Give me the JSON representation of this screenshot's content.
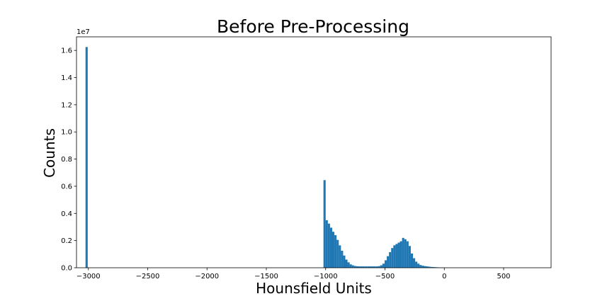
{
  "chart_data": {
    "type": "bar",
    "title": "Before Pre-Processing",
    "xlabel": "Hounsfield Units",
    "ylabel": "Counts",
    "y_offset_label": "1e7",
    "xlim": [
      -3100,
      900
    ],
    "ylim": [
      0,
      17000000
    ],
    "grid": false,
    "bar_color": "#1f77b4",
    "x_ticks": [
      -3000,
      -2500,
      -2000,
      -1500,
      -1000,
      -500,
      0,
      500
    ],
    "x_tick_labels": [
      "−3000",
      "−2500",
      "−2000",
      "−1500",
      "−1000",
      "−500",
      "0",
      "500"
    ],
    "y_ticks": [
      0,
      2000000,
      4000000,
      6000000,
      8000000,
      10000000,
      12000000,
      14000000,
      16000000
    ],
    "y_tick_labels": [
      "0.0",
      "0.2",
      "0.4",
      "0.6",
      "0.8",
      "1.0",
      "1.2",
      "1.4",
      "1.6"
    ],
    "bins": {
      "start": -3024,
      "width": 18.4,
      "counts": [
        16250000,
        0,
        0,
        0,
        0,
        0,
        0,
        0,
        0,
        0,
        0,
        0,
        0,
        0,
        0,
        0,
        0,
        0,
        0,
        0,
        0,
        0,
        0,
        0,
        0,
        0,
        0,
        0,
        0,
        0,
        0,
        0,
        0,
        0,
        0,
        0,
        0,
        0,
        0,
        0,
        0,
        0,
        0,
        0,
        0,
        0,
        0,
        0,
        0,
        0,
        0,
        0,
        0,
        0,
        0,
        0,
        0,
        0,
        0,
        0,
        0,
        0,
        0,
        0,
        0,
        0,
        0,
        0,
        0,
        0,
        0,
        0,
        0,
        0,
        0,
        0,
        0,
        0,
        0,
        0,
        0,
        0,
        0,
        0,
        0,
        0,
        0,
        0,
        0,
        0,
        0,
        0,
        0,
        0,
        0,
        0,
        0,
        0,
        0,
        0,
        0,
        0,
        0,
        0,
        0,
        0,
        0,
        0,
        0,
        6450000,
        3500000,
        3250000,
        2950000,
        2650000,
        2400000,
        2050000,
        1650000,
        1250000,
        900000,
        600000,
        400000,
        250000,
        180000,
        130000,
        110000,
        100000,
        100000,
        100000,
        100000,
        100000,
        100000,
        100000,
        100000,
        100000,
        120000,
        180000,
        300000,
        550000,
        850000,
        1150000,
        1450000,
        1650000,
        1750000,
        1850000,
        1950000,
        2200000,
        2100000,
        1950000,
        1600000,
        1050000,
        700000,
        450000,
        300000,
        200000,
        150000,
        120000,
        100000,
        80000,
        60000,
        50000,
        40000,
        30000,
        20000,
        15000,
        10000,
        5000
      ]
    }
  }
}
